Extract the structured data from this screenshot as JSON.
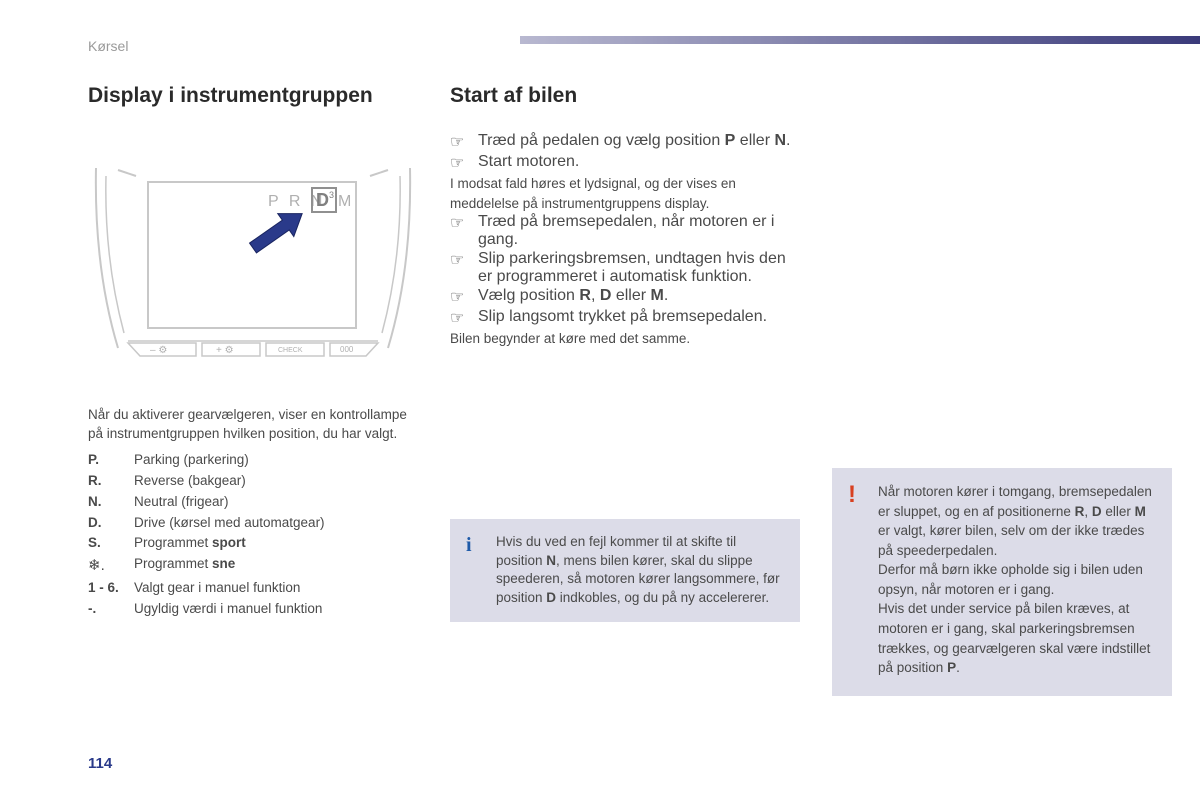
{
  "section_label": "Kørsel",
  "page_number": "114",
  "left": {
    "heading": "Display i instrumentgruppen",
    "cluster": {
      "prnd_letters": [
        "P",
        "R",
        "N",
        "D",
        "M"
      ],
      "selected_index": 3,
      "gear_digit": "3",
      "buttons": [
        "–",
        "+",
        "CHECK",
        "000"
      ],
      "outline_color": "#c8c8c8",
      "text_color": "#b0b0b0",
      "arrow_fill": "#2a3a8a",
      "arrow_stroke": "#1a2560"
    },
    "intro": "Når du aktiverer gearvælgeren, viser en kontrollampe på instrumentgruppen hvilken position, du har valgt.",
    "definitions": [
      {
        "key": "P.",
        "val": "Parking (parkering)"
      },
      {
        "key": "R.",
        "val": "Reverse (bakgear)"
      },
      {
        "key": "N.",
        "val": "Neutral (frigear)"
      },
      {
        "key": "D.",
        "val": "Drive (kørsel med automatgear)"
      },
      {
        "key": "S.",
        "val_html": "Programmet <b>sport</b>"
      },
      {
        "key": "❄.",
        "val_html": "Programmet <b>sne</b>",
        "snow": true
      },
      {
        "key": "1 - 6.",
        "val": "Valgt gear i manuel funktion"
      },
      {
        "key": "-.",
        "val": "Ugyldig værdi i manuel funktion"
      }
    ]
  },
  "mid": {
    "heading": "Start af bilen",
    "block1": [
      {
        "bullet": true,
        "html": "Træd på pedalen og vælg position <b>P</b> eller <b>N</b>."
      },
      {
        "bullet": true,
        "html": "Start motoren."
      },
      {
        "bullet": false,
        "html": "I modsat fald høres et lydsignal, og der vises en meddelelse på instrumentgruppens display."
      },
      {
        "bullet": true,
        "html": "Træd på bremsepedalen, når motoren er i gang."
      },
      {
        "bullet": true,
        "html": "Slip parkeringsbremsen, undtagen hvis den er programmeret i automatisk funktion."
      },
      {
        "bullet": true,
        "html": "Vælg position <b>R</b>, <b>D</b> eller <b>M</b>."
      },
      {
        "bullet": true,
        "html": "Slip langsomt trykket på bremsepedalen."
      },
      {
        "bullet": false,
        "html": "Bilen begynder at køre med det samme."
      }
    ],
    "info_html": "Hvis du ved en fejl kommer til at skifte til position <b>N</b>, mens bilen kører, skal du slippe speederen, så motoren kører langsommere, før position <b>D</b> indkobles, og du på ny accelererer."
  },
  "right": {
    "warn_html": "Når motoren kører i tomgang, bremsepedalen er sluppet, og en af positionerne <b>R</b>, <b>D</b> eller <b>M</b> er valgt, kører bilen, selv om der ikke trædes på speederpedalen.<br>Derfor må børn ikke opholde sig i bilen uden opsyn, når motoren er i gang.<br>Hvis det under service på bilen kræves, at motoren er i gang, skal parkeringsbremsen trækkes, og gearvælgeren skal være indstillet på position <b>P</b>."
  },
  "colors": {
    "info_icon": "#1e5aa8",
    "warn_icon": "#d84020",
    "box_bg": "#dcdce8",
    "page_num": "#2a3a8a"
  }
}
